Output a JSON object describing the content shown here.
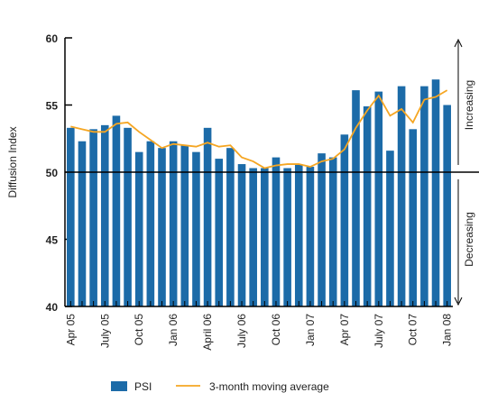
{
  "chart_data": {
    "type": "bar",
    "y_label": "Diffusion Index",
    "categories": [
      "Apr 05",
      null,
      null,
      "July 05",
      null,
      null,
      "Oct 05",
      null,
      null,
      "Jan 06",
      null,
      null,
      "April 06",
      null,
      null,
      "July 06",
      null,
      null,
      "Oct 06",
      null,
      null,
      "Jan 07",
      null,
      null,
      "Apr 07",
      null,
      null,
      "July 07",
      null,
      null,
      "Oct 07",
      null,
      null,
      "Jan 08"
    ],
    "series": [
      {
        "name": "PSI",
        "kind": "bar",
        "color": "#1c6ba8",
        "values": [
          53.3,
          52.3,
          53.2,
          53.5,
          54.2,
          53.3,
          51.5,
          52.3,
          51.8,
          52.3,
          52.0,
          51.5,
          53.3,
          51.0,
          51.8,
          50.6,
          50.3,
          50.3,
          51.1,
          50.3,
          50.6,
          50.4,
          51.4,
          51.1,
          52.8,
          56.1,
          54.9,
          56.0,
          51.6,
          56.4,
          53.2,
          56.4,
          56.9,
          55.0
        ]
      },
      {
        "name": "3-month moving average",
        "kind": "line",
        "color": "#f5a623",
        "values": [
          53.4,
          53.2,
          53.0,
          53.0,
          53.6,
          53.7,
          53.0,
          52.4,
          51.8,
          52.1,
          52.0,
          51.9,
          52.2,
          51.9,
          52.0,
          51.1,
          50.8,
          50.3,
          50.5,
          50.6,
          50.6,
          50.4,
          50.8,
          51.0,
          51.7,
          53.3,
          54.6,
          55.7,
          54.2,
          54.7,
          53.7,
          55.4,
          55.6,
          56.1
        ]
      }
    ],
    "reference_line": 50,
    "annotations": [
      "Increasing",
      "Decreasing"
    ],
    "ylim": [
      40,
      60
    ],
    "yticks": [
      40,
      45,
      50,
      55,
      60
    ]
  }
}
